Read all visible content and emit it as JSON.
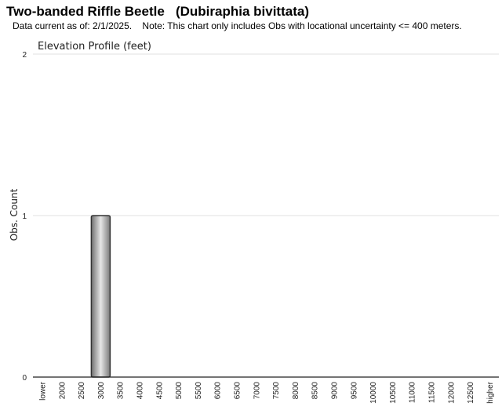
{
  "header": {
    "title": "Two-banded Riffle Beetle   (Dubiraphia bivittata)",
    "subtitle": "Data current as of: 2/1/2025.    Note: This chart only includes Obs with locational uncertainty <= 400 meters."
  },
  "chart_data": {
    "type": "bar",
    "title": "Elevation Profile (feet)",
    "xlabel": "",
    "ylabel": "Obs. Count",
    "ylim": [
      0,
      2
    ],
    "yticks": [
      "0",
      "1",
      "2"
    ],
    "grid": true,
    "categories": [
      "lower",
      "2000",
      "2500",
      "3000",
      "3500",
      "4000",
      "4500",
      "5000",
      "5500",
      "6000",
      "6500",
      "7000",
      "7500",
      "8000",
      "8500",
      "9000",
      "9500",
      "10000",
      "10500",
      "11000",
      "11500",
      "12000",
      "12500",
      "higher"
    ],
    "series": [
      {
        "values": [
          0,
          0,
          0,
          1,
          0,
          0,
          0,
          0,
          0,
          0,
          0,
          0,
          0,
          0,
          0,
          0,
          0,
          0,
          0,
          0,
          0,
          0,
          0,
          0
        ]
      }
    ]
  }
}
